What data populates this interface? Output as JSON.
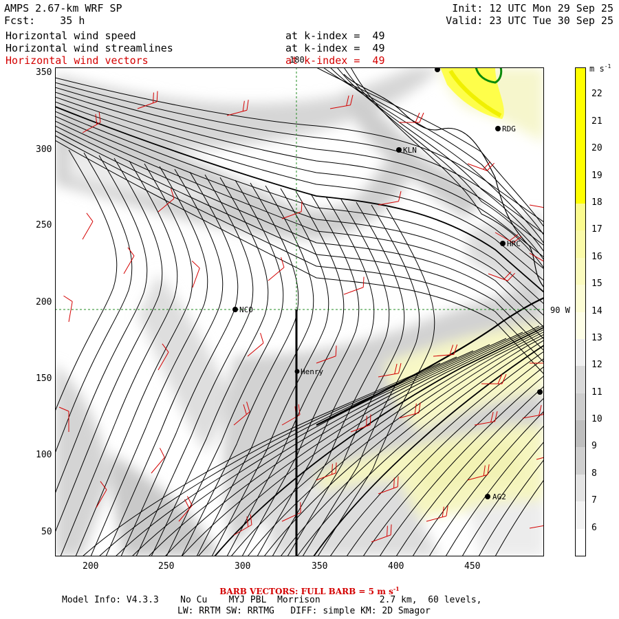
{
  "header": {
    "model": "AMPS 2.67-km WRF SP",
    "forecast": "Fcst:    35 h",
    "init": "Init: 12 UTC Mon 29 Sep 25",
    "valid": "Valid: 23 UTC Tue 30 Sep 25",
    "fields": [
      {
        "name": "Horizontal wind speed",
        "level": "at k-index =  49",
        "color": "#000000"
      },
      {
        "name": "Horizontal wind streamlines",
        "level": "at k-index =  49",
        "color": "#000000"
      },
      {
        "name": "Horizontal wind vectors",
        "level": "at k-index =  49",
        "color": "#d40000"
      }
    ]
  },
  "map": {
    "x_ticks": [
      "200",
      "250",
      "300",
      "350",
      "400",
      "450"
    ],
    "y_ticks": [
      "350",
      "300",
      "250",
      "200",
      "150",
      "100",
      "50"
    ],
    "grid_labels": {
      "meridian": "180",
      "parallel": "90 W"
    },
    "stations": [
      "RDG",
      "KLN",
      "HRC",
      "NCO",
      "Henry",
      "AG2"
    ],
    "colors": {
      "wind_vectors": "#d40000",
      "grid_lines": "#228b22",
      "coast": "#0a8a0a"
    }
  },
  "colorbar": {
    "unit": "m s",
    "unit_exp": "-1",
    "levels": [
      "22",
      "21",
      "20",
      "19",
      "18",
      "17",
      "16",
      "15",
      "14",
      "13",
      "12",
      "11",
      "10",
      "9",
      "8",
      "7",
      "6"
    ],
    "colors": [
      "#ffff00",
      "#ffff00",
      "#ffff00",
      "#ffff00",
      "#ffff00",
      "#fbfb8e",
      "#fafaa8",
      "#fbfbbe",
      "#fcfcd4",
      "#fdfde6",
      "#f0f0f0",
      "#d9d9d9",
      "#cdcdcd",
      "#bebebe",
      "#cfcfcf",
      "#e4e4e4",
      "#f2f2f2",
      "#ffffff"
    ]
  },
  "footer": {
    "barb_text": "BARB VECTORS:  FULL BARB = 5 m s",
    "barb_exp": "-1",
    "model_info": "Model Info: V4.3.3    No Cu    MYJ PBL  Morrison           2.7 km,  60 levels,",
    "physics": "LW: RRTM SW: RRTMG   DIFF: simple KM: 2D Smagor"
  }
}
